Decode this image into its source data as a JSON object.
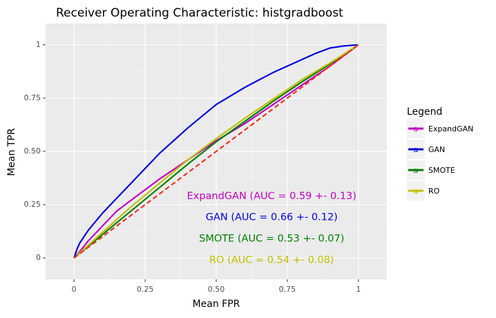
{
  "chart_data": {
    "type": "line",
    "title": "Receiver Operating Characteristic: histgradboost",
    "xlabel": "Mean FPR",
    "ylabel": "Mean TPR",
    "xlim": [
      -0.1,
      1.1
    ],
    "ylim": [
      -0.1,
      1.1
    ],
    "x_ticks": [
      0,
      0.25,
      0.5,
      0.75,
      1
    ],
    "x_tick_labels": [
      "0",
      "0.25",
      "0.50",
      "0.75",
      "1"
    ],
    "y_ticks": [
      0,
      0.25,
      0.5,
      0.75,
      1
    ],
    "y_tick_labels": [
      "0",
      "0.25",
      "0.50",
      "0.75",
      "1"
    ],
    "grid": true,
    "background_color": "#ebebeb",
    "legend": {
      "title": "Legend",
      "placement": "right",
      "key_glyph": "a"
    },
    "series": [
      {
        "name": "ExpandGAN",
        "color": "#c000c0",
        "x": [
          0,
          0.02,
          0.05,
          0.1,
          0.15,
          0.2,
          0.3,
          0.4,
          0.5,
          0.6,
          0.7,
          0.8,
          0.9,
          0.95,
          1
        ],
        "y": [
          0,
          0.03,
          0.08,
          0.15,
          0.22,
          0.27,
          0.37,
          0.46,
          0.55,
          0.63,
          0.72,
          0.81,
          0.9,
          0.95,
          1
        ]
      },
      {
        "name": "GAN",
        "color": "#0000e0",
        "x": [
          0,
          0.01,
          0.02,
          0.05,
          0.1,
          0.2,
          0.3,
          0.4,
          0.5,
          0.6,
          0.7,
          0.8,
          0.85,
          0.9,
          0.95,
          1
        ],
        "y": [
          0,
          0.04,
          0.07,
          0.13,
          0.21,
          0.35,
          0.49,
          0.61,
          0.72,
          0.8,
          0.87,
          0.93,
          0.96,
          0.985,
          0.995,
          1
        ]
      },
      {
        "name": "SMOTE",
        "color": "#008000",
        "x": [
          0,
          0.1,
          0.2,
          0.3,
          0.4,
          0.5,
          0.6,
          0.7,
          0.8,
          0.9,
          1
        ],
        "y": [
          0,
          0.11,
          0.22,
          0.33,
          0.44,
          0.545,
          0.64,
          0.735,
          0.825,
          0.91,
          1
        ]
      },
      {
        "name": "RO",
        "color": "#c0c000",
        "x": [
          0,
          0.1,
          0.2,
          0.3,
          0.4,
          0.5,
          0.6,
          0.7,
          0.8,
          0.9,
          1
        ],
        "y": [
          0,
          0.12,
          0.24,
          0.35,
          0.46,
          0.56,
          0.655,
          0.745,
          0.835,
          0.915,
          1
        ]
      }
    ],
    "reference_line": {
      "color": "#ee3322",
      "style": "dashed",
      "x": [
        0,
        1
      ],
      "y": [
        0,
        1
      ]
    },
    "annotations": [
      {
        "text": "ExpandGAN (AUC = 0.59 +- 0.13)",
        "x": 0.695,
        "y": 0.29,
        "color": "#c000c0"
      },
      {
        "text": "GAN (AUC = 0.66 +- 0.12)",
        "x": 0.695,
        "y": 0.19,
        "color": "#0000e0"
      },
      {
        "text": "SMOTE (AUC = 0.53 +- 0.07)",
        "x": 0.695,
        "y": 0.09,
        "color": "#008000"
      },
      {
        "text": "RO (AUC = 0.54 +- 0.08)",
        "x": 0.695,
        "y": -0.01,
        "color": "#c0c000"
      }
    ]
  }
}
